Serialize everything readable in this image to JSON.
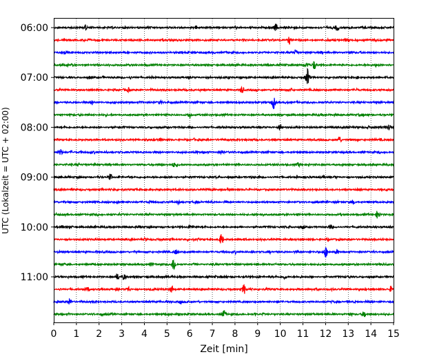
{
  "chart_data": {
    "type": "line",
    "title": "",
    "xlabel": "Zeit  [min]",
    "ylabel": "UTC (Lokalzeit = UTC + 02:00)",
    "xlim": [
      0,
      15
    ],
    "x_ticks": [
      0,
      1,
      2,
      3,
      4,
      5,
      6,
      7,
      8,
      9,
      10,
      11,
      12,
      13,
      14,
      15
    ],
    "x_tick_labels": [
      "0",
      "1",
      "2",
      "3",
      "4",
      "5",
      "6",
      "7",
      "8",
      "9",
      "10",
      "11",
      "12",
      "13",
      "14",
      "15"
    ],
    "grid": "vertical dotted lines at each minute",
    "y_ticks": [
      {
        "label": "06:00",
        "trace_index": 0
      },
      {
        "label": "07:00",
        "trace_index": 4
      },
      {
        "label": "08:00",
        "trace_index": 8
      },
      {
        "label": "09:00",
        "trace_index": 12
      },
      {
        "label": "10:00",
        "trace_index": 16
      },
      {
        "label": "11:00",
        "trace_index": 20
      }
    ],
    "trace_interval_minutes": 15,
    "color_cycle": [
      "#000000",
      "#ff0000",
      "#0000ff",
      "#008000"
    ],
    "traces": [
      {
        "start": "06:00",
        "bursts": [
          [
            1.4,
            0.4
          ],
          [
            9.8,
            0.5
          ],
          [
            12.5,
            0.5
          ]
        ]
      },
      {
        "start": "06:15",
        "bursts": [
          [
            10.4,
            0.6
          ]
        ]
      },
      {
        "start": "06:30",
        "bursts": [
          [
            10.7,
            0.5
          ]
        ]
      },
      {
        "start": "06:45",
        "bursts": [
          [
            11.5,
            0.7
          ],
          [
            11.2,
            0.4
          ]
        ]
      },
      {
        "start": "07:00",
        "bursts": [
          [
            11.2,
            1.4
          ]
        ]
      },
      {
        "start": "07:15",
        "bursts": [
          [
            8.3,
            0.5
          ],
          [
            3.3,
            0.3
          ]
        ]
      },
      {
        "start": "07:30",
        "bursts": [
          [
            9.7,
            1.0
          ],
          [
            1.7,
            0.3
          ],
          [
            4.7,
            0.3
          ]
        ]
      },
      {
        "start": "07:45",
        "bursts": [
          [
            6.0,
            0.5
          ]
        ]
      },
      {
        "start": "08:00",
        "bursts": [
          [
            10.0,
            0.5
          ],
          [
            14.8,
            0.5
          ]
        ]
      },
      {
        "start": "08:15",
        "bursts": [
          [
            12.6,
            0.6
          ]
        ]
      },
      {
        "start": "08:30",
        "bursts": [
          [
            0.3,
            0.5
          ],
          [
            7.4,
            0.3
          ]
        ]
      },
      {
        "start": "08:45",
        "bursts": [
          [
            5.3,
            0.3
          ],
          [
            10.8,
            0.3
          ]
        ]
      },
      {
        "start": "09:00",
        "bursts": [
          [
            2.5,
            0.5
          ]
        ]
      },
      {
        "start": "09:15",
        "bursts": [
          [
            7.0,
            0.3
          ]
        ]
      },
      {
        "start": "09:30",
        "bursts": [
          [
            5.5,
            0.3
          ],
          [
            13.2,
            0.3
          ]
        ]
      },
      {
        "start": "09:45",
        "bursts": [
          [
            14.3,
            0.6
          ]
        ]
      },
      {
        "start": "10:00",
        "bursts": [
          [
            11.0,
            0.3
          ],
          [
            12.2,
            0.3
          ]
        ]
      },
      {
        "start": "10:15",
        "bursts": [
          [
            7.4,
            0.9
          ]
        ]
      },
      {
        "start": "10:30",
        "bursts": [
          [
            12.0,
            0.9
          ],
          [
            5.4,
            0.3
          ],
          [
            12.5,
            0.3
          ]
        ]
      },
      {
        "start": "10:45",
        "bursts": [
          [
            5.3,
            1.1
          ],
          [
            4.3,
            0.3
          ]
        ]
      },
      {
        "start": "11:00",
        "bursts": [
          [
            2.8,
            0.5
          ],
          [
            3.1,
            0.4
          ],
          [
            10.2,
            0.3
          ]
        ]
      },
      {
        "start": "11:15",
        "bursts": [
          [
            8.4,
            0.8
          ],
          [
            5.2,
            0.5
          ],
          [
            1.5,
            0.4
          ],
          [
            3.3,
            0.4
          ],
          [
            14.9,
            0.4
          ]
        ]
      },
      {
        "start": "11:30",
        "bursts": [
          [
            0.7,
            0.5
          ],
          [
            5.6,
            0.3
          ]
        ]
      },
      {
        "start": "11:45",
        "bursts": [
          [
            7.5,
            0.6
          ],
          [
            13.7,
            0.5
          ]
        ]
      }
    ]
  }
}
